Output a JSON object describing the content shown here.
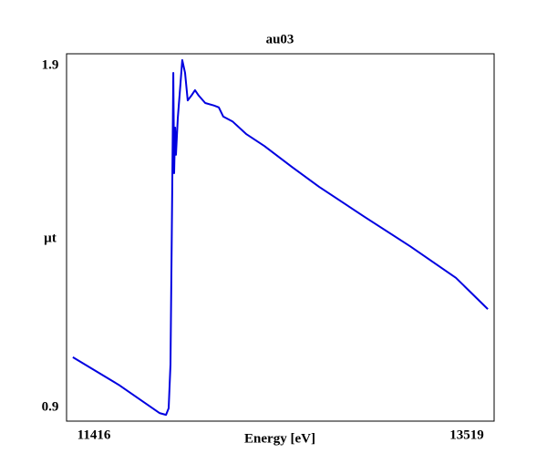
{
  "chart_data": {
    "type": "line",
    "title": "au03",
    "xlabel": "Energy [eV]",
    "ylabel": "µt",
    "xlim": [
      11416,
      13519
    ],
    "xticks": [
      11416,
      13519
    ],
    "ylim": [
      0.9,
      1.9
    ],
    "yticks": [
      0.9,
      1.9
    ],
    "series": [
      {
        "name": "au03",
        "color": "#0000e0",
        "x": [
          11447,
          11672,
          11873,
          11905,
          11918,
          11927,
          11936,
          11941,
          11945,
          11950,
          11954,
          11963,
          11977,
          11985,
          11999,
          12012,
          12030,
          12048,
          12066,
          12098,
          12142,
          12165,
          12187,
          12232,
          12299,
          12389,
          12524,
          12658,
          12882,
          13106,
          13331,
          13488
        ],
        "values": [
          1.074,
          0.999,
          0.922,
          0.917,
          0.935,
          1.054,
          1.55,
          1.848,
          1.575,
          1.699,
          1.625,
          1.724,
          1.823,
          1.883,
          1.848,
          1.773,
          1.786,
          1.801,
          1.786,
          1.766,
          1.759,
          1.754,
          1.729,
          1.716,
          1.682,
          1.649,
          1.592,
          1.538,
          1.456,
          1.376,
          1.29,
          1.205
        ]
      }
    ]
  }
}
